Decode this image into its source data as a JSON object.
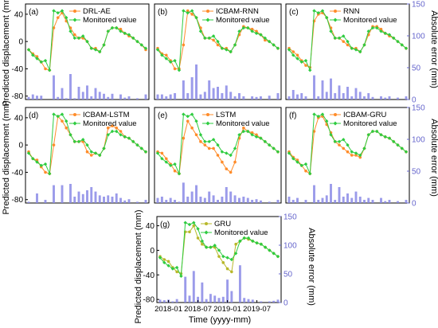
{
  "figure": {
    "left_axis_label": "Predicted displacement (mm)",
    "right_axis_label": "Absolute error (mm)",
    "x_axis_label": "Time (yyyy-mm)",
    "colors": {
      "monitored": "#2ecc40",
      "predicted_orange": "#ff8c2a",
      "predicted_olive": "#b8b82a",
      "error_bars": "#8a8ae6",
      "right_axis": "#6666cc"
    }
  },
  "chart_data": [
    {
      "type": "line",
      "panel": "(a)",
      "x_ticks": [],
      "left_ticks": [
        "40",
        "0",
        "-40",
        "-80"
      ],
      "right_ticks": [],
      "ylim_left": [
        -85,
        55
      ],
      "ylim_right": [
        0,
        150
      ],
      "series": [
        {
          "name": "DRL-AE",
          "values": [
            -12,
            -18,
            -22,
            -30,
            -40,
            -42,
            20,
            35,
            42,
            30,
            20,
            10,
            5,
            5,
            0,
            -10,
            -10,
            -15,
            -5,
            15,
            20,
            20,
            18,
            12,
            8,
            5,
            0,
            -5,
            -12
          ]
        },
        {
          "name": "Monitored value",
          "values": [
            -12,
            -20,
            -25,
            -30,
            -28,
            -42,
            45,
            42,
            45,
            35,
            15,
            5,
            5,
            8,
            0,
            -10,
            -12,
            -15,
            -5,
            15,
            20,
            20,
            15,
            12,
            10,
            5,
            0,
            -5,
            -10
          ]
        },
        {
          "name": "Absolute error",
          "values": [
            4,
            8,
            6,
            6,
            0,
            0,
            38,
            4,
            18,
            2,
            40,
            2,
            20,
            12,
            22,
            5,
            18,
            12,
            9,
            4,
            9,
            0,
            8,
            3,
            5,
            0,
            2,
            0,
            8
          ]
        }
      ]
    },
    {
      "type": "line",
      "panel": "(b)",
      "x_ticks": [],
      "left_ticks": [],
      "right_ticks": [],
      "ylim_left": [
        -85,
        55
      ],
      "ylim_right": [
        0,
        150
      ],
      "series": [
        {
          "name": "ICBAM-RNN",
          "values": [
            -10,
            -18,
            -20,
            -28,
            -40,
            -40,
            -5,
            45,
            40,
            35,
            20,
            5,
            5,
            2,
            -5,
            -10,
            -10,
            -15,
            -5,
            10,
            22,
            20,
            18,
            15,
            10,
            2,
            0,
            -5,
            -10
          ]
        },
        {
          "name": "Monitored value",
          "values": [
            -12,
            -20,
            -25,
            -30,
            -28,
            -42,
            45,
            42,
            45,
            35,
            15,
            5,
            5,
            8,
            0,
            -10,
            -12,
            -15,
            -5,
            15,
            20,
            20,
            15,
            12,
            10,
            5,
            0,
            -5,
            -10
          ]
        },
        {
          "name": "Absolute error",
          "values": [
            8,
            8,
            5,
            8,
            10,
            0,
            30,
            10,
            35,
            55,
            8,
            12,
            30,
            18,
            20,
            10,
            22,
            12,
            5,
            10,
            5,
            0,
            5,
            4,
            5,
            0,
            6,
            0,
            10
          ]
        }
      ]
    },
    {
      "type": "line",
      "panel": "(c)",
      "x_ticks": [],
      "left_ticks": [],
      "right_ticks": [
        "150",
        "100",
        "50",
        "0"
      ],
      "ylim_left": [
        -85,
        55
      ],
      "ylim_right": [
        0,
        150
      ],
      "series": [
        {
          "name": "RNN",
          "values": [
            -10,
            -15,
            -20,
            -28,
            -35,
            -38,
            30,
            40,
            42,
            35,
            20,
            5,
            5,
            0,
            -5,
            -10,
            -10,
            -15,
            -5,
            10,
            22,
            22,
            18,
            12,
            8,
            5,
            0,
            -5,
            -10
          ]
        },
        {
          "name": "Monitored value",
          "values": [
            -12,
            -20,
            -25,
            -30,
            -28,
            -42,
            45,
            42,
            45,
            35,
            15,
            5,
            5,
            8,
            0,
            -10,
            -12,
            -15,
            -5,
            15,
            20,
            20,
            15,
            12,
            10,
            5,
            0,
            -5,
            -10
          ]
        },
        {
          "name": "Absolute error",
          "values": [
            5,
            15,
            8,
            10,
            5,
            0,
            38,
            5,
            30,
            12,
            33,
            10,
            22,
            10,
            20,
            5,
            18,
            12,
            5,
            10,
            4,
            0,
            5,
            3,
            5,
            0,
            3,
            0,
            5
          ]
        }
      ]
    },
    {
      "type": "line",
      "panel": "(d)",
      "x_ticks": [],
      "left_ticks": [
        "40",
        "0",
        "-40",
        "-80"
      ],
      "right_ticks": [],
      "ylim_left": [
        -85,
        55
      ],
      "ylim_right": [
        0,
        150
      ],
      "series": [
        {
          "name": "ICBAM-LSTM",
          "values": [
            -10,
            -20,
            -22,
            -32,
            -40,
            -42,
            0,
            42,
            35,
            25,
            15,
            5,
            5,
            5,
            -10,
            -15,
            -12,
            -15,
            -5,
            25,
            28,
            25,
            20,
            12,
            10,
            5,
            0,
            -5,
            -10
          ]
        },
        {
          "name": "Monitored value",
          "values": [
            -12,
            -20,
            -25,
            -30,
            -28,
            -42,
            45,
            42,
            45,
            35,
            15,
            5,
            5,
            8,
            0,
            -10,
            -12,
            -15,
            -5,
            15,
            20,
            20,
            15,
            12,
            10,
            5,
            0,
            -5,
            -10
          ]
        },
        {
          "name": "Absolute error",
          "values": [
            2,
            0,
            15,
            0,
            5,
            0,
            28,
            0,
            28,
            0,
            30,
            10,
            18,
            14,
            20,
            25,
            18,
            12,
            10,
            12,
            10,
            15,
            8,
            4,
            6,
            0,
            2,
            0,
            5
          ]
        }
      ]
    },
    {
      "type": "line",
      "panel": "(e)",
      "x_ticks": [],
      "left_ticks": [],
      "right_ticks": [],
      "ylim_left": [
        -85,
        55
      ],
      "ylim_right": [
        0,
        150
      ],
      "series": [
        {
          "name": "LSTM",
          "values": [
            -10,
            -12,
            -20,
            -28,
            -38,
            -42,
            10,
            35,
            25,
            15,
            5,
            0,
            -5,
            -5,
            -15,
            -25,
            -35,
            -40,
            -25,
            10,
            25,
            20,
            18,
            15,
            10,
            5,
            0,
            -5,
            -10
          ]
        },
        {
          "name": "Monitored value",
          "values": [
            -12,
            -20,
            -25,
            -30,
            -28,
            -42,
            45,
            42,
            45,
            35,
            15,
            5,
            5,
            8,
            0,
            -10,
            -12,
            -15,
            -5,
            15,
            20,
            20,
            15,
            12,
            10,
            5,
            0,
            -5,
            -10
          ]
        },
        {
          "name": "Absolute error",
          "values": [
            8,
            10,
            5,
            8,
            5,
            2,
            32,
            10,
            18,
            28,
            10,
            8,
            18,
            12,
            5,
            10,
            25,
            18,
            12,
            8,
            10,
            8,
            5,
            6,
            4,
            0,
            2,
            0,
            5
          ]
        }
      ]
    },
    {
      "type": "line",
      "panel": "(f)",
      "x_ticks": [],
      "left_ticks": [],
      "right_ticks": [
        "150",
        "100",
        "50",
        "0"
      ],
      "ylim_left": [
        -85,
        55
      ],
      "ylim_right": [
        0,
        150
      ],
      "series": [
        {
          "name": "ICBAM-GRU",
          "values": [
            -10,
            -18,
            -22,
            -30,
            -38,
            -42,
            20,
            40,
            42,
            30,
            18,
            5,
            0,
            -5,
            -10,
            -15,
            -15,
            -18,
            -5,
            15,
            20,
            20,
            15,
            12,
            10,
            5,
            0,
            -5,
            -10
          ]
        },
        {
          "name": "Monitored value",
          "values": [
            -12,
            -20,
            -25,
            -30,
            -28,
            -42,
            45,
            42,
            45,
            35,
            15,
            5,
            5,
            8,
            0,
            -10,
            -12,
            -15,
            -5,
            15,
            20,
            20,
            15,
            12,
            10,
            5,
            0,
            -5,
            -10
          ]
        },
        {
          "name": "Absolute error",
          "values": [
            10,
            5,
            8,
            0,
            5,
            0,
            28,
            5,
            8,
            12,
            30,
            5,
            25,
            10,
            15,
            8,
            18,
            10,
            5,
            8,
            5,
            0,
            8,
            3,
            5,
            0,
            3,
            0,
            5
          ]
        }
      ]
    },
    {
      "type": "line",
      "panel": "(g)",
      "x_ticks": [
        "2018-01",
        "2018-07",
        "2019-01",
        "2019-07"
      ],
      "left_ticks": [
        "40",
        "0",
        "-40",
        "-80"
      ],
      "right_ticks": [
        "150",
        "100",
        "50",
        "0"
      ],
      "ylim_left": [
        -85,
        55
      ],
      "ylim_right": [
        0,
        150
      ],
      "series": [
        {
          "name": "GRU",
          "values": [
            -10,
            -15,
            -18,
            -28,
            -35,
            -38,
            30,
            30,
            40,
            20,
            10,
            5,
            5,
            5,
            -10,
            -20,
            -30,
            -35,
            10,
            15,
            20,
            18,
            15,
            12,
            10,
            5,
            0,
            -5,
            -10
          ]
        },
        {
          "name": "Monitored value",
          "values": [
            -12,
            -20,
            -25,
            -30,
            -28,
            -42,
            45,
            42,
            45,
            35,
            15,
            5,
            5,
            8,
            0,
            -10,
            -12,
            -15,
            -5,
            15,
            20,
            20,
            15,
            12,
            10,
            5,
            0,
            -5,
            -10
          ]
        },
        {
          "name": "Absolute error",
          "values": [
            5,
            4,
            5,
            2,
            6,
            0,
            45,
            12,
            55,
            10,
            35,
            6,
            15,
            12,
            8,
            10,
            40,
            20,
            0,
            65,
            8,
            6,
            5,
            0,
            2,
            0,
            2,
            3,
            5
          ]
        }
      ]
    }
  ]
}
